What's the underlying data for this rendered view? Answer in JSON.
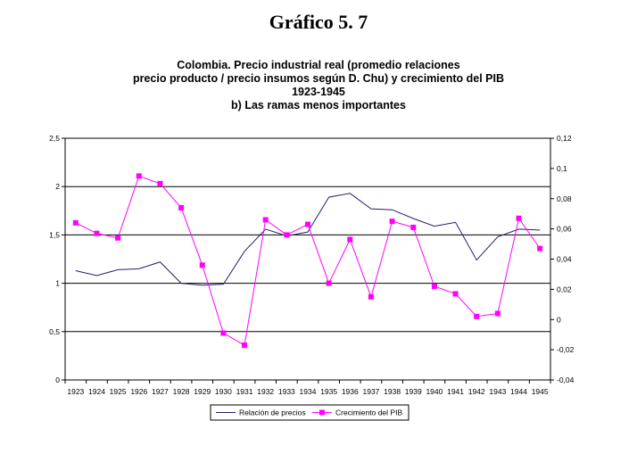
{
  "heading": "Gráfico 5. 7",
  "chart_data": {
    "type": "line",
    "title_lines": [
      "Colombia. Precio industrial real (promedio relaciones",
      "precio producto / precio insumos según D. Chu) y crecimiento del PIB",
      "1923-1945",
      "b) Las ramas menos importantes"
    ],
    "categories": [
      "1923",
      "1924",
      "1925",
      "1926",
      "1927",
      "1928",
      "1929",
      "1930",
      "1931",
      "1932",
      "1933",
      "1934",
      "1935",
      "1936",
      "1937",
      "1938",
      "1939",
      "1940",
      "1941",
      "1942",
      "1943",
      "1944",
      "1945"
    ],
    "series": [
      {
        "name": "Relación de precios",
        "axis": "left",
        "color": "#1f1f6e",
        "marker": "none",
        "values": [
          1.13,
          1.08,
          1.14,
          1.15,
          1.22,
          1.0,
          0.98,
          0.99,
          1.33,
          1.56,
          1.49,
          1.53,
          1.89,
          1.93,
          1.77,
          1.76,
          1.67,
          1.59,
          1.63,
          1.24,
          1.48,
          1.56,
          1.55
        ]
      },
      {
        "name": "Crecimiento del PIB",
        "axis": "right",
        "color": "#ff00ff",
        "marker": "square",
        "values": [
          0.064,
          0.057,
          0.054,
          0.095,
          0.09,
          0.074,
          0.036,
          -0.009,
          -0.017,
          0.066,
          0.056,
          0.063,
          0.024,
          0.053,
          0.015,
          0.065,
          0.061,
          0.022,
          0.017,
          0.002,
          0.004,
          0.067,
          0.047
        ]
      }
    ],
    "y_left": {
      "ylim": [
        0,
        2.5
      ],
      "ticks": [
        "0",
        "0,5",
        "1",
        "1,5",
        "2",
        "2,5"
      ]
    },
    "y_right": {
      "ylim": [
        -0.04,
        0.12
      ],
      "ticks": [
        "-0,04",
        "-0,02",
        "0",
        "0,02",
        "0,04",
        "0,06",
        "0,08",
        "0,1",
        "0,12"
      ]
    },
    "grid": "horizontal major lines (left axis)",
    "legend_position": "bottom-center"
  }
}
